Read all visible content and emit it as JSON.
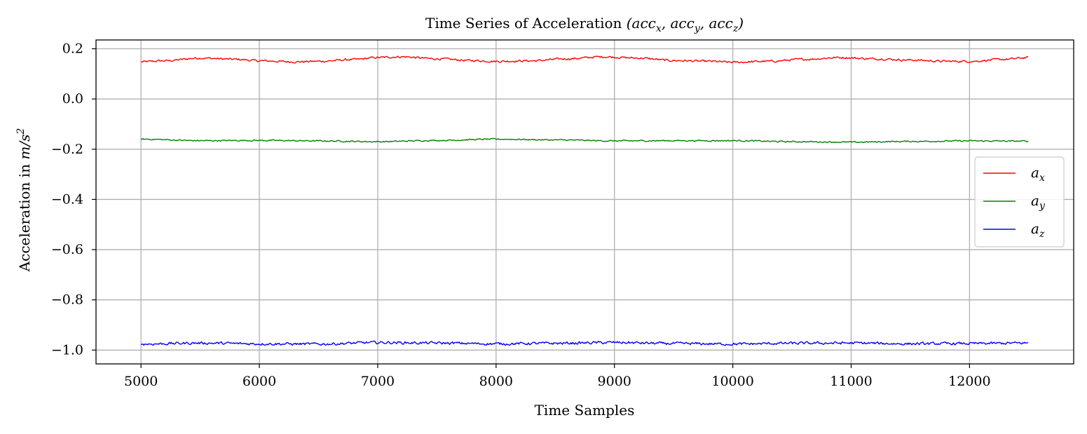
{
  "chart_data": {
    "type": "line",
    "title": {
      "prefix": "Time Series of Acceleration ",
      "math": [
        [
          "(acc",
          "x"
        ],
        [
          ", acc",
          "y"
        ],
        [
          ", acc",
          "z"
        ],
        [
          ")",
          ""
        ]
      ]
    },
    "xlabel": "Time Samples",
    "ylabel": {
      "prefix": "Acceleration in ",
      "math": "m/s",
      "sup": "2"
    },
    "xlim": [
      4620,
      12880
    ],
    "ylim": [
      -1.055,
      0.235
    ],
    "xticks": [
      5000,
      6000,
      7000,
      8000,
      9000,
      10000,
      11000,
      12000
    ],
    "yticks": [
      0.2,
      0.0,
      -0.2,
      -0.4,
      -0.6,
      -0.8,
      -1.0
    ],
    "ytick_labels": [
      "0.2",
      "0.0",
      "−0.2",
      "−0.4",
      "−0.6",
      "−0.8",
      "−1.0"
    ],
    "grid": true,
    "legend_position": "center-right",
    "x_range": [
      5000,
      12500
    ],
    "series": [
      {
        "name": {
          "base": "a",
          "sub": "x"
        },
        "color": "#ff0000",
        "anchors_x": [
          5000,
          5200,
          5500,
          5800,
          6000,
          6300,
          6500,
          6800,
          7000,
          7200,
          7500,
          7800,
          8000,
          8300,
          8600,
          8900,
          9200,
          9500,
          9800,
          10000,
          10300,
          10600,
          10900,
          11200,
          11500,
          11800,
          12000,
          12300,
          12500
        ],
        "anchors_y": [
          0.148,
          0.152,
          0.163,
          0.158,
          0.152,
          0.148,
          0.15,
          0.157,
          0.165,
          0.168,
          0.16,
          0.153,
          0.15,
          0.152,
          0.16,
          0.168,
          0.163,
          0.153,
          0.15,
          0.146,
          0.15,
          0.158,
          0.165,
          0.16,
          0.155,
          0.15,
          0.15,
          0.158,
          0.165
        ],
        "noise": 0.0035
      },
      {
        "name": {
          "base": "a",
          "sub": "y"
        },
        "color": "#008000",
        "anchors_x": [
          5000,
          5500,
          6000,
          6500,
          7000,
          7500,
          8000,
          8500,
          9000,
          9500,
          10000,
          10500,
          11000,
          11500,
          12000,
          12500
        ],
        "anchors_y": [
          -0.16,
          -0.166,
          -0.165,
          -0.167,
          -0.17,
          -0.165,
          -0.16,
          -0.163,
          -0.167,
          -0.166,
          -0.166,
          -0.17,
          -0.172,
          -0.169,
          -0.167,
          -0.168
        ],
        "noise": 0.0022
      },
      {
        "name": {
          "base": "a",
          "sub": "z"
        },
        "color": "#0000ff",
        "anchors_x": [
          5000,
          5500,
          6000,
          6500,
          7000,
          7500,
          8000,
          8500,
          9000,
          9500,
          10000,
          10500,
          11000,
          11500,
          12000,
          12500
        ],
        "anchors_y": [
          -0.976,
          -0.972,
          -0.975,
          -0.976,
          -0.97,
          -0.972,
          -0.975,
          -0.973,
          -0.97,
          -0.974,
          -0.976,
          -0.973,
          -0.972,
          -0.975,
          -0.974,
          -0.972
        ],
        "noise": 0.0045
      }
    ]
  }
}
